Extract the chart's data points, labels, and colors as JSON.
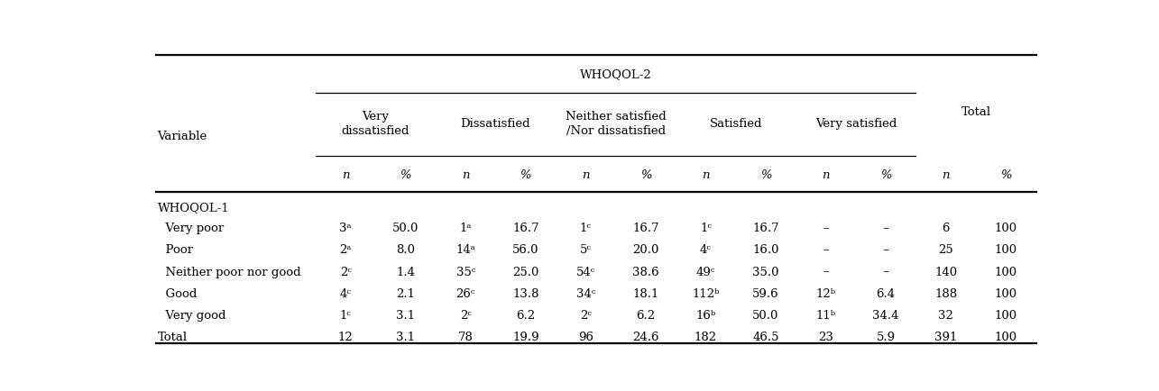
{
  "whoqol2_header": "WHOQOL-2",
  "col_groups": [
    {
      "label": "Very\ndissatisfied",
      "span": 2
    },
    {
      "label": "Dissatisfied",
      "span": 2
    },
    {
      "label": "Neither satisfied\n/Nor dissatisfied",
      "span": 2
    },
    {
      "label": "Satisfied",
      "span": 2
    },
    {
      "label": "Very satisfied",
      "span": 2
    }
  ],
  "total_group": {
    "label": "Total",
    "span": 2
  },
  "col_headers": [
    "n",
    "%",
    "n",
    "%",
    "n",
    "%",
    "n",
    "%",
    "n",
    "%",
    "n",
    "%"
  ],
  "row_header": "Variable",
  "section_label": "WHOQOL-1",
  "rows": [
    {
      "label": "  Very poor",
      "values": [
        "3ᵃ",
        "50.0",
        "1ᵃ",
        "16.7",
        "1ᶜ",
        "16.7",
        "1ᶜ",
        "16.7",
        "–",
        "–",
        "6",
        "100"
      ],
      "bold": false
    },
    {
      "label": "  Poor",
      "values": [
        "2ᵃ",
        "8.0",
        "14ᵃ",
        "56.0",
        "5ᶜ",
        "20.0",
        "4ᶜ",
        "16.0",
        "–",
        "–",
        "25",
        "100"
      ],
      "bold": false
    },
    {
      "label": "  Neither poor nor good",
      "values": [
        "2ᶜ",
        "1.4",
        "35ᶜ",
        "25.0",
        "54ᶜ",
        "38.6",
        "49ᶜ",
        "35.0",
        "–",
        "–",
        "140",
        "100"
      ],
      "bold": false
    },
    {
      "label": "  Good",
      "values": [
        "4ᶜ",
        "2.1",
        "26ᶜ",
        "13.8",
        "34ᶜ",
        "18.1",
        "112ᵇ",
        "59.6",
        "12ᵇ",
        "6.4",
        "188",
        "100"
      ],
      "bold": false
    },
    {
      "label": "  Very good",
      "values": [
        "1ᶜ",
        "3.1",
        "2ᶜ",
        "6.2",
        "2ᶜ",
        "6.2",
        "16ᵇ",
        "50.0",
        "11ᵇ",
        "34.4",
        "32",
        "100"
      ],
      "bold": false
    },
    {
      "label": "Total",
      "values": [
        "12",
        "3.1",
        "78",
        "19.9",
        "96",
        "24.6",
        "182",
        "46.5",
        "23",
        "5.9",
        "391",
        "100"
      ],
      "bold": false
    }
  ],
  "bg_color": "#ffffff",
  "text_color": "#000000",
  "font_size": 9.5,
  "header_font_size": 9.5
}
